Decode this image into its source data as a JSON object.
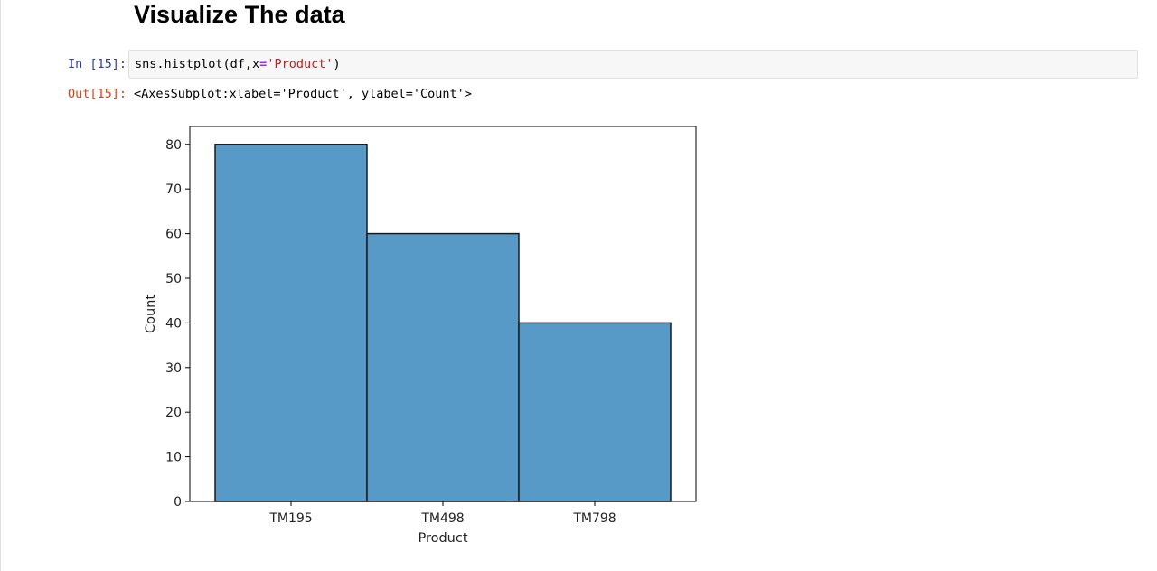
{
  "notebook": {
    "heading": "Visualize The data",
    "cells": [
      {
        "in_prompt": "In [15]:",
        "code": {
          "p1": "sns.histplot(df,x",
          "op": "=",
          "str": "'Product'",
          "p2": ")"
        },
        "out_prompt": "Out[15]:",
        "output_text": "<AxesSubplot:xlabel='Product', ylabel='Count'>"
      }
    ]
  },
  "chart_data": {
    "type": "bar",
    "categories": [
      "TM195",
      "TM498",
      "TM798"
    ],
    "values": [
      80,
      60,
      40
    ],
    "title": "",
    "xlabel": "Product",
    "ylabel": "Count",
    "ylim": [
      0,
      84
    ],
    "yticks": [
      0,
      10,
      20,
      30,
      40,
      50,
      60,
      70,
      80
    ],
    "grid": false,
    "legend": "none",
    "bar_color": "#5799c7",
    "edge_color": "#1a1a1a"
  }
}
